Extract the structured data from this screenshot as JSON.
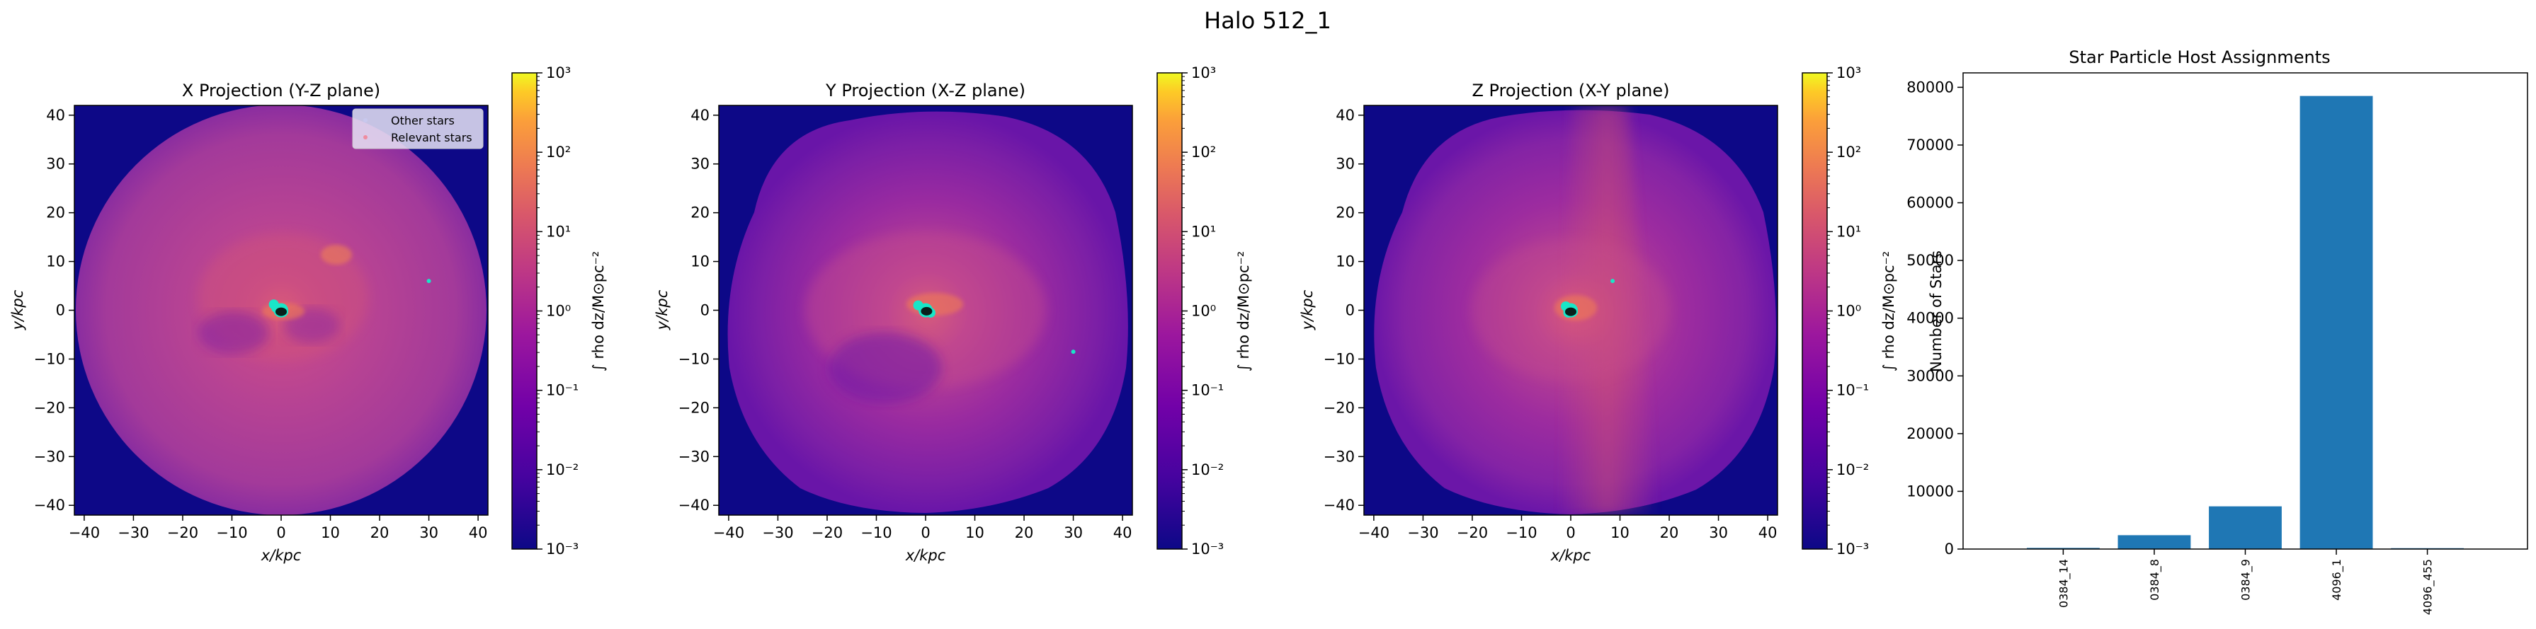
{
  "figure": {
    "suptitle": "Halo 512_1"
  },
  "projections": [
    {
      "title": "X Projection (Y-Z plane)",
      "xlabel": "x/kpc",
      "ylabel": "y/kpc",
      "has_legend": true,
      "stars_cyan": [
        [
          0,
          0
        ],
        [
          -1.5,
          1.2
        ],
        [
          -1,
          0.5
        ],
        [
          30,
          6
        ]
      ],
      "stars_black": [
        [
          0,
          -0.3
        ]
      ]
    },
    {
      "title": "Y Projection (X-Z plane)",
      "xlabel": "x/kpc",
      "ylabel": "y/kpc",
      "has_legend": false,
      "stars_cyan": [
        [
          0,
          0
        ],
        [
          -1.5,
          1
        ],
        [
          1,
          -0.5
        ],
        [
          30,
          -8.5
        ]
      ],
      "stars_black": [
        [
          0.2,
          -0.2
        ]
      ]
    },
    {
      "title": "Z Projection (X-Y plane)",
      "xlabel": "x/kpc",
      "ylabel": "y/kpc",
      "has_legend": false,
      "stars_cyan": [
        [
          0,
          0
        ],
        [
          -1,
          0.8
        ],
        [
          -0.5,
          -0.5
        ],
        [
          8.5,
          6
        ]
      ],
      "stars_black": [
        [
          0,
          -0.3
        ]
      ]
    }
  ],
  "axes": {
    "xlim": [
      -42,
      42
    ],
    "ylim": [
      -42,
      42
    ],
    "ticks": [
      -40,
      -30,
      -20,
      -10,
      0,
      10,
      20,
      30,
      40
    ]
  },
  "colorbar": {
    "label": "∫ rho dz/M⊙pc⁻²",
    "scale": "log",
    "range": [
      0.001,
      1000
    ],
    "tick_labels": [
      "10³",
      "10²",
      "10¹",
      "10⁰",
      "10⁻¹",
      "10⁻²",
      "10⁻³"
    ],
    "colormap": "plasma"
  },
  "legend": {
    "entries": [
      "Other stars",
      "Relevant stars"
    ],
    "placement": "top-right"
  },
  "colors": {
    "cyan_star": "#19e6c8",
    "bar": "#1f77b4"
  },
  "chart_data": [
    {
      "type": "bar",
      "title": "Star Particle Host Assignments",
      "xlabel": "",
      "ylabel": "Number of Stars",
      "categories": [
        "0384_14",
        "0384_8",
        "0384_9",
        "4096_1",
        "4096_455"
      ],
      "values": [
        200,
        2400,
        7400,
        78500,
        150
      ],
      "ylim": [
        0,
        82500
      ],
      "yticks": [
        0,
        10000,
        20000,
        30000,
        40000,
        50000,
        60000,
        70000,
        80000
      ],
      "grid": false
    }
  ]
}
